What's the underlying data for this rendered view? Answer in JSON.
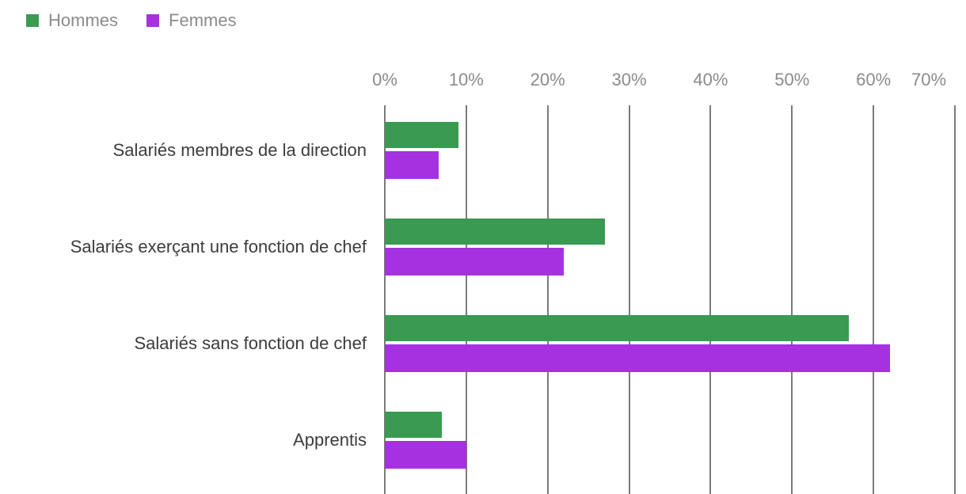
{
  "legend": {
    "items": [
      {
        "label": "Hommes",
        "color": "#3a9a51"
      },
      {
        "label": "Femmes",
        "color": "#a531df"
      }
    ]
  },
  "chart_data": {
    "type": "bar",
    "orientation": "horizontal",
    "categories": [
      "Salariés membres de la direction",
      "Salariés exerçant une fonction de chef",
      "Salariés sans fonction de chef",
      "Apprentis"
    ],
    "series": [
      {
        "name": "Hommes",
        "color": "#3a9a51",
        "values": [
          9,
          27,
          57,
          7
        ]
      },
      {
        "name": "Femmes",
        "color": "#a531df",
        "values": [
          6.6,
          22,
          62,
          10
        ]
      }
    ],
    "x_ticks": [
      "0%",
      "10%",
      "20%",
      "30%",
      "40%",
      "50%",
      "60%",
      "70%"
    ],
    "x_tick_values": [
      0,
      10,
      20,
      30,
      40,
      50,
      60,
      70
    ],
    "xlim": [
      0,
      70
    ],
    "grid": "vertical",
    "legend_position": "top-left",
    "colors": {
      "gridline": "#7b7b7b",
      "tick_text": "#8b8b8b",
      "category_text": "#3c3c3c",
      "background": "#ffffff"
    }
  }
}
